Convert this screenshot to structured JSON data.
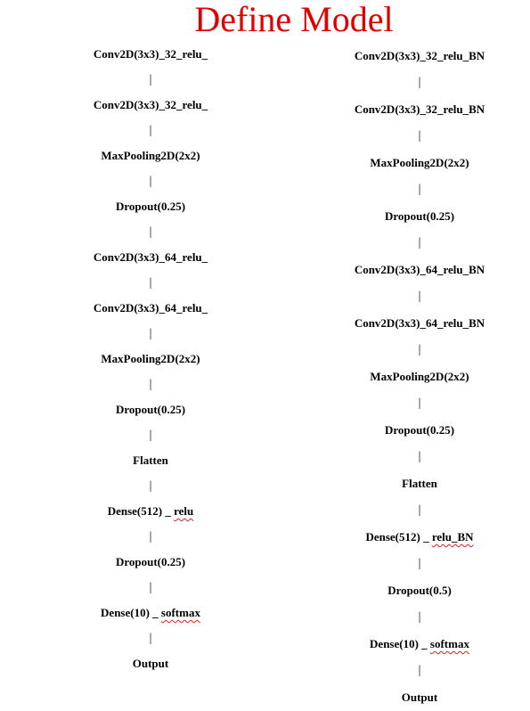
{
  "title": "Define Model",
  "connector_glyph": "|",
  "columns": [
    {
      "nodes": [
        {
          "text": "Conv2D(3x3)_32_relu_"
        },
        {
          "text": "Conv2D(3x3)_32_relu_"
        },
        {
          "text": "MaxPooling2D(2x2)"
        },
        {
          "text": "Dropout(0.25)"
        },
        {
          "text": "Conv2D(3x3)_64_relu_"
        },
        {
          "text": "Conv2D(3x3)_64_relu_"
        },
        {
          "text": "MaxPooling2D(2x2)"
        },
        {
          "text": "Dropout(0.25)"
        },
        {
          "text": "Flatten"
        },
        {
          "text": "Dense(512) _ ",
          "flagged": "relu"
        },
        {
          "text": "Dropout(0.25)"
        },
        {
          "text": "Dense(10) _ ",
          "flagged": "softmax"
        },
        {
          "text": "Output"
        }
      ]
    },
    {
      "nodes": [
        {
          "text": "Conv2D(3x3)_32_relu_BN"
        },
        {
          "text": "Conv2D(3x3)_32_relu_BN"
        },
        {
          "text": "MaxPooling2D(2x2)"
        },
        {
          "text": "Dropout(0.25)"
        },
        {
          "text": "Conv2D(3x3)_64_relu_BN"
        },
        {
          "text": "Conv2D(3x3)_64_relu_BN"
        },
        {
          "text": "MaxPooling2D(2x2)"
        },
        {
          "text": "Dropout(0.25)"
        },
        {
          "text": "Flatten"
        },
        {
          "text": "Dense(512) _ ",
          "flagged": "relu_BN"
        },
        {
          "text": "Dropout(0.5)"
        },
        {
          "text": "Dense(10) _ ",
          "flagged": "softmax"
        },
        {
          "text": "Output"
        }
      ]
    }
  ]
}
